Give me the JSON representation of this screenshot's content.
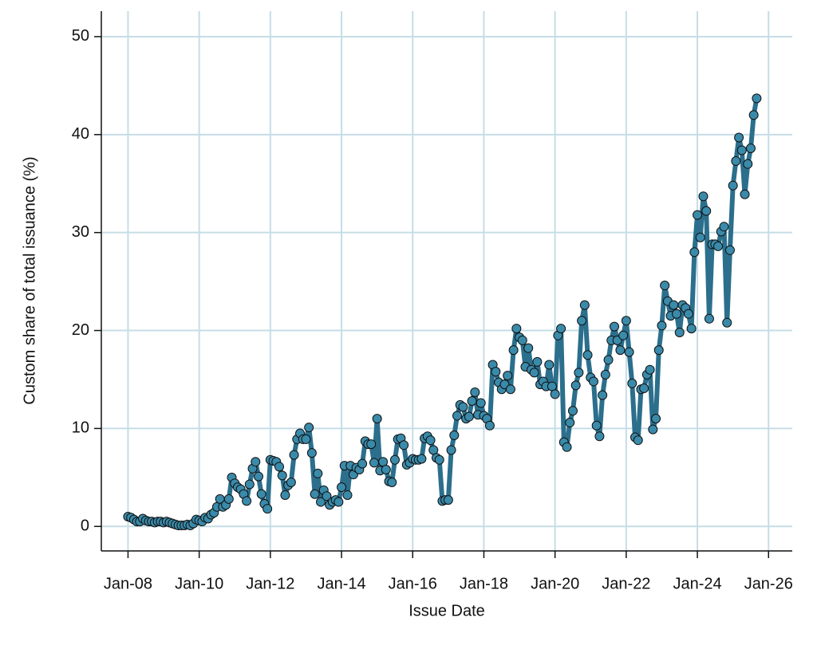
{
  "chart_data": {
    "type": "line",
    "x_label": "Issue Date",
    "y_label": "Custom share of total issuance (%)",
    "x": [
      "Jan-08",
      "Feb-08",
      "Mar-08",
      "Apr-08",
      "May-08",
      "Jun-08",
      "Jul-08",
      "Aug-08",
      "Sep-08",
      "Oct-08",
      "Nov-08",
      "Dec-08",
      "Jan-09",
      "Feb-09",
      "Mar-09",
      "Apr-09",
      "May-09",
      "Jun-09",
      "Jul-09",
      "Aug-09",
      "Sep-09",
      "Oct-09",
      "Nov-09",
      "Dec-09",
      "Jan-10",
      "Feb-10",
      "Mar-10",
      "Apr-10",
      "May-10",
      "Jun-10",
      "Jul-10",
      "Aug-10",
      "Sep-10",
      "Oct-10",
      "Nov-10",
      "Dec-10",
      "Jan-11",
      "Feb-11",
      "Mar-11",
      "Apr-11",
      "May-11",
      "Jun-11",
      "Jul-11",
      "Aug-11",
      "Sep-11",
      "Oct-11",
      "Nov-11",
      "Dec-11",
      "Jan-12",
      "Feb-12",
      "Mar-12",
      "Apr-12",
      "May-12",
      "Jun-12",
      "Jul-12",
      "Aug-12",
      "Sep-12",
      "Oct-12",
      "Nov-12",
      "Dec-12",
      "Jan-13",
      "Feb-13",
      "Mar-13",
      "Apr-13",
      "May-13",
      "Jun-13",
      "Jul-13",
      "Aug-13",
      "Sep-13",
      "Oct-13",
      "Nov-13",
      "Dec-13",
      "Jan-14",
      "Feb-14",
      "Mar-14",
      "Apr-14",
      "May-14",
      "Jun-14",
      "Jul-14",
      "Aug-14",
      "Sep-14",
      "Oct-14",
      "Nov-14",
      "Dec-14",
      "Jan-15",
      "Feb-15",
      "Mar-15",
      "Apr-15",
      "May-15",
      "Jun-15",
      "Jul-15",
      "Aug-15",
      "Sep-15",
      "Oct-15",
      "Nov-15",
      "Dec-15",
      "Jan-16",
      "Feb-16",
      "Mar-16",
      "Apr-16",
      "May-16",
      "Jun-16",
      "Jul-16",
      "Aug-16",
      "Sep-16",
      "Oct-16",
      "Nov-16",
      "Dec-16",
      "Jan-17",
      "Feb-17",
      "Mar-17",
      "Apr-17",
      "May-17",
      "Jun-17",
      "Jul-17",
      "Aug-17",
      "Sep-17",
      "Oct-17",
      "Nov-17",
      "Dec-17",
      "Jan-18",
      "Feb-18",
      "Mar-18",
      "Apr-18",
      "May-18",
      "Jun-18",
      "Jul-18",
      "Aug-18",
      "Sep-18",
      "Oct-18",
      "Nov-18",
      "Dec-18",
      "Jan-19",
      "Feb-19",
      "Mar-19",
      "Apr-19",
      "May-19",
      "Jun-19",
      "Jul-19",
      "Aug-19",
      "Sep-19",
      "Oct-19",
      "Nov-19",
      "Dec-19",
      "Jan-20",
      "Feb-20",
      "Mar-20",
      "Apr-20",
      "May-20",
      "Jun-20",
      "Jul-20",
      "Aug-20",
      "Sep-20",
      "Oct-20",
      "Nov-20",
      "Dec-20",
      "Jan-21",
      "Feb-21",
      "Mar-21",
      "Apr-21",
      "May-21",
      "Jun-21",
      "Jul-21",
      "Aug-21",
      "Sep-21",
      "Oct-21",
      "Nov-21",
      "Dec-21",
      "Jan-22",
      "Feb-22",
      "Mar-22",
      "Apr-22",
      "May-22",
      "Jun-22",
      "Jul-22",
      "Aug-22",
      "Sep-22",
      "Oct-22",
      "Nov-22",
      "Dec-22",
      "Jan-23",
      "Feb-23",
      "Mar-23",
      "Apr-23",
      "May-23",
      "Jun-23",
      "Jul-23",
      "Aug-23",
      "Sep-23",
      "Oct-23",
      "Nov-23",
      "Dec-23",
      "Jan-24",
      "Feb-24",
      "Mar-24",
      "Apr-24",
      "May-24",
      "Jun-24",
      "Jul-24",
      "Aug-24",
      "Sep-24",
      "Oct-24",
      "Nov-24",
      "Dec-24",
      "Jan-25",
      "Feb-25",
      "Mar-25",
      "Apr-25",
      "May-25",
      "Jun-25",
      "Jul-25",
      "Aug-25",
      "Sep-25"
    ],
    "series": [
      {
        "color": "#2b6f8c",
        "marker_color": "#3a8aaa",
        "values": [
          1.0,
          0.9,
          0.7,
          0.5,
          0.5,
          0.8,
          0.6,
          0.5,
          0.5,
          0.4,
          0.5,
          0.5,
          0.4,
          0.5,
          0.4,
          0.3,
          0.2,
          0.1,
          0.1,
          0.1,
          0.2,
          0.1,
          0.3,
          0.7,
          0.6,
          0.5,
          0.9,
          0.8,
          1.2,
          1.4,
          2.0,
          2.8,
          2.0,
          2.2,
          2.8,
          5.0,
          4.4,
          4.0,
          3.8,
          3.3,
          2.6,
          4.3,
          5.9,
          6.6,
          5.1,
          3.3,
          2.3,
          1.8,
          6.8,
          6.7,
          6.6,
          6.1,
          5.2,
          3.2,
          4.2,
          4.5,
          7.3,
          8.9,
          9.5,
          8.9,
          8.9,
          10.1,
          7.5,
          3.3,
          5.4,
          2.5,
          3.7,
          3.1,
          2.2,
          2.5,
          2.7,
          2.5,
          4.0,
          6.2,
          3.2,
          6.2,
          5.3,
          6.0,
          5.8,
          6.4,
          8.7,
          8.4,
          8.4,
          6.5,
          11.0,
          5.7,
          6.6,
          5.8,
          4.6,
          4.5,
          6.8,
          8.9,
          9.0,
          8.3,
          6.3,
          6.5,
          6.9,
          6.8,
          6.8,
          6.9,
          9.0,
          9.2,
          8.8,
          7.8,
          7.0,
          6.8,
          2.6,
          2.7,
          2.7,
          7.8,
          9.3,
          11.3,
          12.4,
          12.2,
          11.0,
          11.2,
          12.8,
          13.7,
          11.4,
          12.6,
          11.3,
          11.0,
          10.3,
          16.5,
          15.8,
          14.7,
          14.0,
          14.5,
          15.4,
          14.0,
          18.0,
          20.2,
          19.3,
          19.0,
          16.3,
          18.2,
          16.0,
          15.7,
          16.8,
          14.5,
          14.8,
          14.3,
          16.5,
          14.3,
          13.5,
          19.5,
          20.2,
          8.6,
          8.1,
          10.6,
          11.8,
          14.4,
          15.7,
          21.0,
          22.6,
          17.5,
          15.2,
          14.8,
          10.3,
          9.2,
          13.4,
          15.5,
          17.0,
          19.0,
          20.4,
          19.0,
          18.0,
          19.5,
          21.0,
          17.8,
          14.6,
          9.1,
          8.8,
          14.0,
          14.1,
          15.5,
          16.0,
          9.9,
          11.0,
          18.0,
          20.5,
          24.6,
          23.0,
          21.5,
          22.6,
          21.7,
          19.8,
          22.6,
          22.3,
          21.7,
          20.2,
          28.0,
          31.8,
          29.5,
          33.7,
          32.2,
          21.2,
          28.8,
          28.8,
          28.6,
          30.1,
          30.6,
          20.8,
          28.2,
          34.8,
          37.3,
          39.7,
          38.4,
          33.9,
          37.0,
          38.6,
          42.0,
          43.7
        ]
      }
    ],
    "xlim": [
      "Apr-07",
      "Sep-26"
    ],
    "xticks": [
      "Jan-08",
      "Jan-10",
      "Jan-12",
      "Jan-14",
      "Jan-16",
      "Jan-18",
      "Jan-20",
      "Jan-22",
      "Jan-24",
      "Jan-26"
    ],
    "ylim": [
      -2.5,
      52.6
    ],
    "yticks": [
      0,
      10,
      20,
      30,
      40,
      50
    ],
    "grid": true,
    "grid_color": "#c6dde6"
  }
}
